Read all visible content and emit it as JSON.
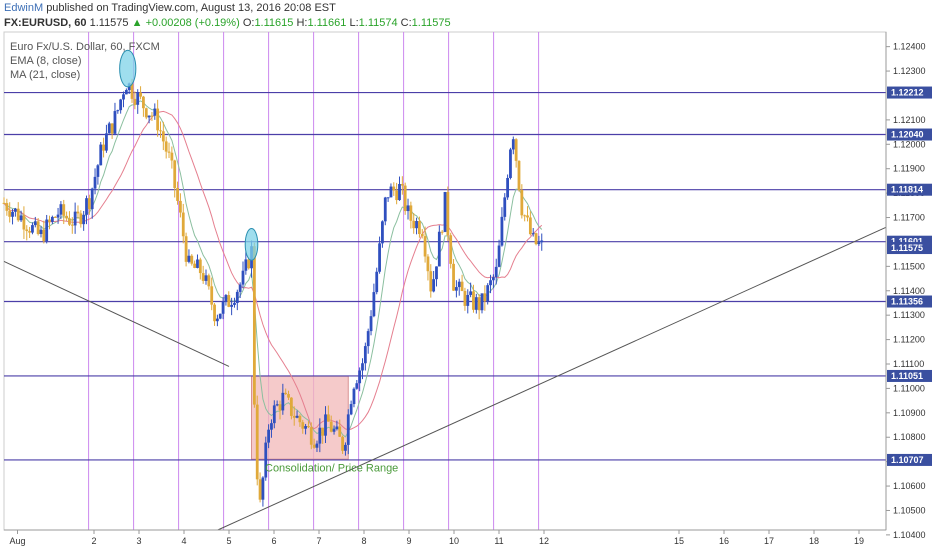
{
  "header": {
    "author": "EdwinM",
    "published": "published on TradingView.com, August 13, 2016 20:08 EST",
    "symbol": "FX:EURUSD, 60",
    "last": "1.11575",
    "change": "+0.00208 (+0.19%)",
    "o_label": "O:",
    "o_value": "1.11615",
    "h_label": "H:",
    "h_value": "1.11661",
    "l_label": "L:",
    "l_value": "1.11574",
    "c_label": "C:",
    "c_value": "1.11575"
  },
  "legend": {
    "instrument": "Euro Fx/U.S. Dollar, 60, FXCM",
    "ema": "EMA (8, close)",
    "ma": "MA (21, close)"
  },
  "colors": {
    "up_candle": "#2f4fbf",
    "down_candle": "#e0a93a",
    "ema": "#8bbf9f",
    "ma": "#e57f8f",
    "hline": "#4b3fa8",
    "vline": "#cc88ee",
    "trend": "#555555",
    "box_fill": "#f2b8b8",
    "ellipse": "#7fd3e8",
    "price_box": "#3a4fa0",
    "annotation": "#4a9a3a"
  },
  "chart_data": {
    "type": "candlestick",
    "y_range": [
      1.1042,
      1.1246
    ],
    "x_range": [
      0,
      19.6
    ],
    "x_tick_labels": [
      {
        "x": 0.3,
        "label": "Aug"
      },
      {
        "x": 2,
        "label": "2"
      },
      {
        "x": 3,
        "label": "3"
      },
      {
        "x": 4,
        "label": "4"
      },
      {
        "x": 5,
        "label": "5"
      },
      {
        "x": 6,
        "label": "6"
      },
      {
        "x": 7,
        "label": "7"
      },
      {
        "x": 8,
        "label": "8"
      },
      {
        "x": 9,
        "label": "9"
      },
      {
        "x": 10,
        "label": "10"
      },
      {
        "x": 11,
        "label": "11"
      },
      {
        "x": 12,
        "label": "12"
      },
      {
        "x": 15,
        "label": "15"
      },
      {
        "x": 16,
        "label": "16"
      },
      {
        "x": 17,
        "label": "17"
      },
      {
        "x": 18,
        "label": "18"
      },
      {
        "x": 19,
        "label": "19"
      }
    ],
    "y_tick_labels": [
      "1.12400",
      "1.12300",
      "1.12100",
      "1.12000",
      "1.11900",
      "1.11800",
      "1.11700",
      "1.11500",
      "1.11400",
      "1.11300",
      "1.11200",
      "1.11100",
      "1.11000",
      "1.10900",
      "1.10800",
      "1.10700",
      "1.10600",
      "1.10500",
      "1.10400"
    ],
    "price_levels": [
      1.12212,
      1.1204,
      1.11814,
      1.11601,
      1.11575,
      1.11356,
      1.11051,
      1.10707
    ],
    "price_level_labels": [
      "1.12212",
      "1.12040",
      "1.11814",
      "1.11601",
      "1.11575",
      "1.11356",
      "1.11051",
      "1.10707"
    ],
    "horizontal_lines": [
      1.12212,
      1.1204,
      1.11814,
      1.11601,
      1.11356,
      1.11051,
      1.10707
    ],
    "vertical_lines": [
      1.88,
      2.88,
      3.88,
      4.88,
      5.88,
      6.88,
      7.88,
      8.88,
      9.88,
      10.88,
      11.88
    ],
    "trend_lines": [
      {
        "x1": 0,
        "y1": 1.1152,
        "x2": 5.0,
        "y2": 1.1109
      },
      {
        "x1": 4.75,
        "y1": 1.1042,
        "x2": 19.6,
        "y2": 1.1166
      }
    ],
    "range_box": {
      "x1": 5.5,
      "x2": 7.65,
      "y1": 1.1071,
      "y2": 1.1105
    },
    "annotation": {
      "x": 5.8,
      "y": 1.1066,
      "text": "Consolidation/ Price Range"
    },
    "ellipses": [
      {
        "x": 2.75,
        "y": 1.1231,
        "rx": 0.18,
        "ry": 0.00075
      },
      {
        "x": 5.5,
        "y": 1.1159,
        "rx": 0.14,
        "ry": 0.00065
      }
    ],
    "waypoints": [
      [
        0.0,
        1.1176
      ],
      [
        0.4,
        1.117
      ],
      [
        0.8,
        1.1162
      ],
      [
        1.2,
        1.1172
      ],
      [
        1.6,
        1.1168
      ],
      [
        1.9,
        1.1178
      ],
      [
        2.2,
        1.12
      ],
      [
        2.5,
        1.1212
      ],
      [
        2.7,
        1.1226
      ],
      [
        2.85,
        1.1222
      ],
      [
        3.1,
        1.1216
      ],
      [
        3.4,
        1.121
      ],
      [
        3.7,
        1.1192
      ],
      [
        3.9,
        1.1172
      ],
      [
        4.1,
        1.115
      ],
      [
        4.4,
        1.1148
      ],
      [
        4.7,
        1.113
      ],
      [
        5.0,
        1.1136
      ],
      [
        5.3,
        1.1144
      ],
      [
        5.5,
        1.1157
      ],
      [
        5.58,
        1.108
      ],
      [
        5.68,
        1.105
      ],
      [
        5.9,
        1.1088
      ],
      [
        6.2,
        1.1096
      ],
      [
        6.5,
        1.1088
      ],
      [
        6.9,
        1.108
      ],
      [
        7.2,
        1.1086
      ],
      [
        7.55,
        1.1076
      ],
      [
        7.75,
        1.1102
      ],
      [
        8.0,
        1.1112
      ],
      [
        8.3,
        1.115
      ],
      [
        8.5,
        1.118
      ],
      [
        8.8,
        1.1182
      ],
      [
        9.0,
        1.117
      ],
      [
        9.3,
        1.1166
      ],
      [
        9.5,
        1.114
      ],
      [
        9.8,
        1.1176
      ],
      [
        10.0,
        1.1142
      ],
      [
        10.3,
        1.1136
      ],
      [
        10.6,
        1.1134
      ],
      [
        10.95,
        1.1148
      ],
      [
        11.3,
        1.1208
      ],
      [
        11.5,
        1.1175
      ],
      [
        11.75,
        1.116
      ],
      [
        11.95,
        1.1158
      ]
    ],
    "candle_count": 190
  }
}
